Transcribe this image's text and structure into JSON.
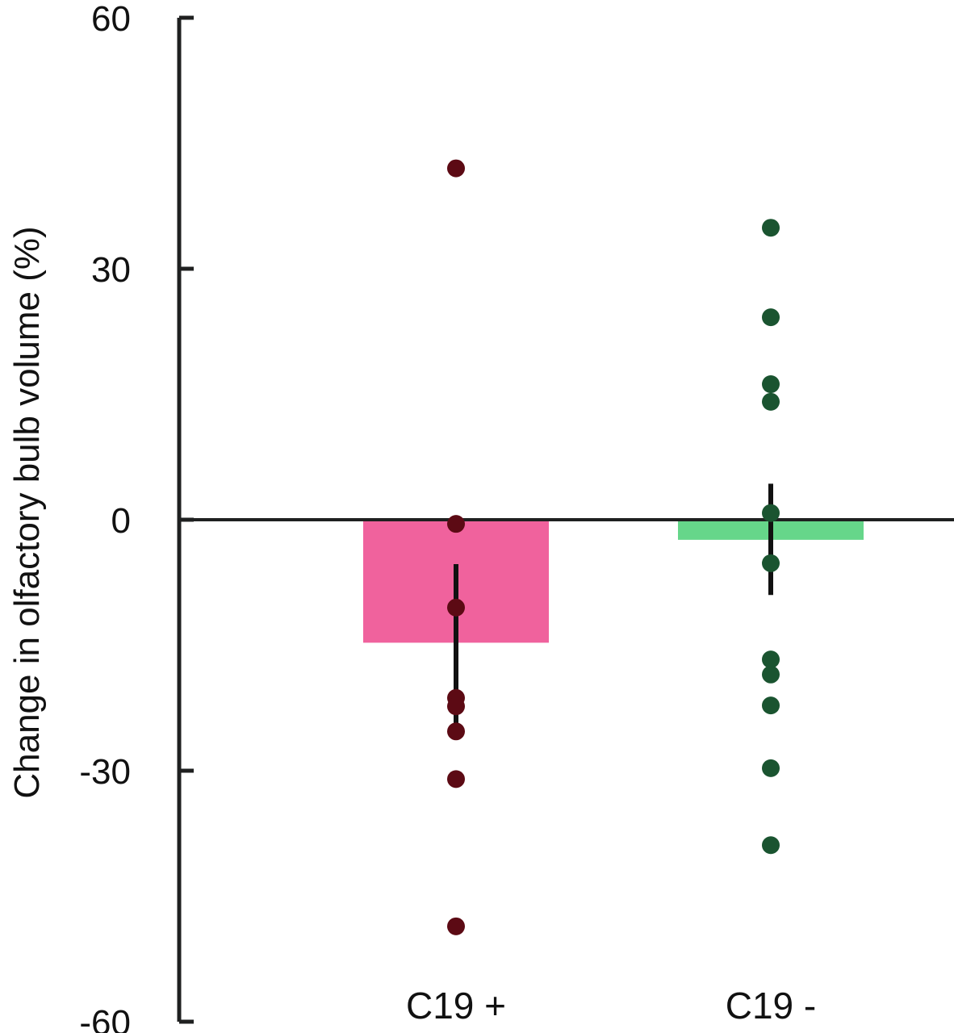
{
  "chart_data": {
    "type": "bar",
    "title": "",
    "xlabel": "",
    "ylabel": "Change in olfactory bulb volume (%)",
    "ylim": [
      -60,
      60
    ],
    "yticks": [
      60,
      30,
      0,
      -30,
      -60
    ],
    "categories": [
      "C19 +",
      "C19 -"
    ],
    "bars": [
      {
        "category": "C19 +",
        "value": -14.7,
        "error_low": -24.5,
        "error_high": -5.3,
        "bar_color": "#f0629d",
        "point_color": "#5c0a14",
        "points": [
          42.0,
          -0.5,
          -10.5,
          -21.3,
          -22.3,
          -25.3,
          -31.0,
          -48.6
        ]
      },
      {
        "category": "C19 -",
        "value": -2.4,
        "error_low": -9.0,
        "error_high": 4.3,
        "bar_color": "#66d68a",
        "point_color": "#1a5430",
        "points": [
          34.9,
          24.2,
          16.2,
          14.1,
          0.8,
          -5.2,
          -16.7,
          -18.5,
          -22.2,
          -29.7,
          -38.9
        ]
      }
    ],
    "axis_color": "#1f2020",
    "errorbar_color": "#111111"
  }
}
